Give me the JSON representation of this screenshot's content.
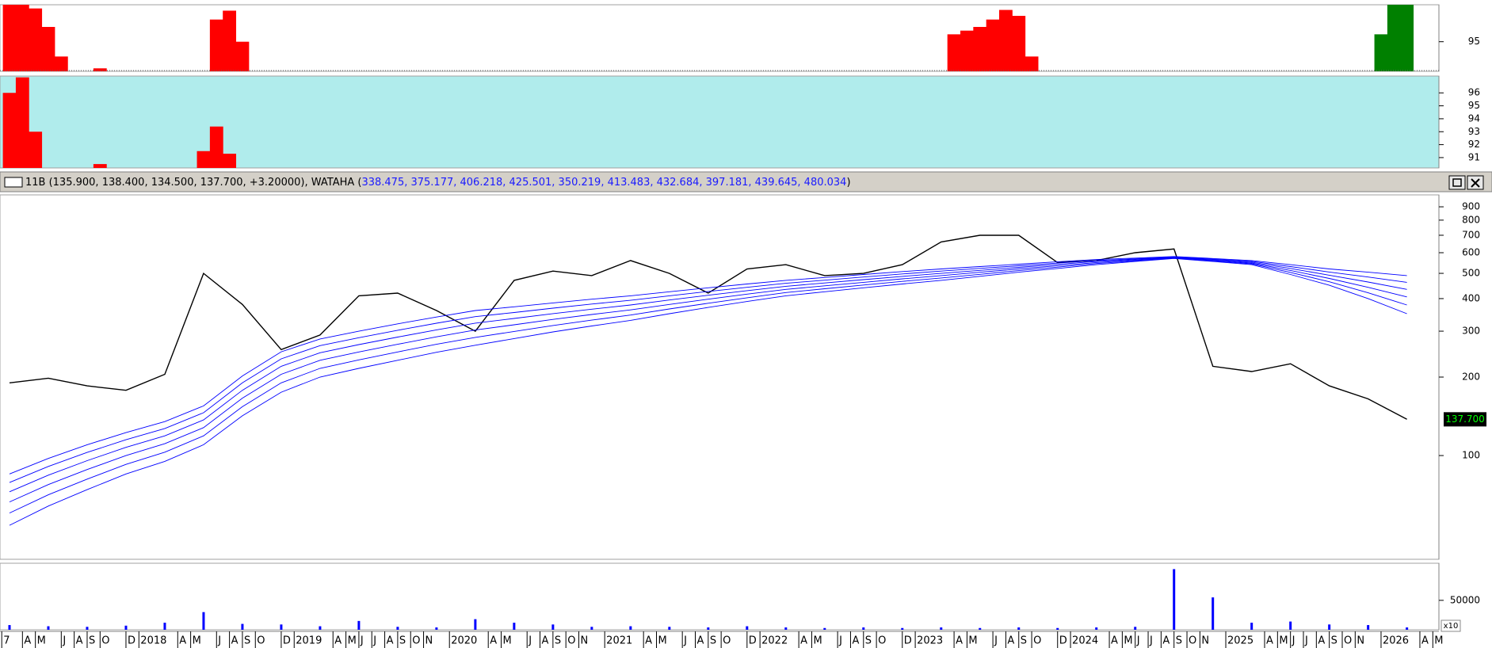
{
  "chart_data": [
    {
      "type": "bar",
      "series": [
        {
          "color": "#ff0000",
          "values": [
            100,
            100,
            99.5,
            97,
            93,
            null,
            null,
            91.4,
            null,
            null,
            null,
            null,
            null,
            null,
            null,
            null,
            98,
            99.2,
            95,
            null,
            null,
            null,
            null,
            null,
            null,
            null,
            null,
            null,
            null,
            null,
            null,
            null,
            null,
            null,
            null,
            null,
            null,
            null,
            null,
            null,
            null,
            null,
            null,
            null,
            null,
            null,
            null,
            null,
            null,
            null,
            null,
            null,
            null,
            null,
            null,
            null,
            null,
            null,
            null,
            null,
            null,
            null,
            null,
            null,
            null,
            null,
            null,
            null,
            null,
            null,
            null,
            null,
            null,
            96,
            96.5,
            97,
            98,
            99.3,
            98.5,
            93,
            null,
            null,
            null,
            null,
            null,
            null,
            null,
            null,
            null,
            null,
            null,
            null,
            null,
            null,
            null,
            null,
            null,
            null,
            null,
            null,
            null,
            null,
            null,
            null,
            null,
            null,
            null,
            null,
            null
          ]
        },
        {
          "color": "#008000",
          "values": [
            null,
            null,
            null,
            null,
            null,
            null,
            null,
            null,
            null,
            null,
            null,
            null,
            null,
            null,
            null,
            null,
            null,
            null,
            null,
            null,
            null,
            null,
            null,
            null,
            null,
            null,
            null,
            null,
            null,
            null,
            null,
            null,
            null,
            null,
            null,
            null,
            null,
            null,
            null,
            null,
            null,
            null,
            null,
            null,
            null,
            null,
            null,
            null,
            null,
            null,
            null,
            null,
            null,
            null,
            null,
            null,
            null,
            null,
            null,
            null,
            null,
            null,
            null,
            null,
            null,
            null,
            null,
            null,
            null,
            null,
            null,
            null,
            null,
            null,
            null,
            null,
            null,
            null,
            null,
            null,
            null,
            null,
            null,
            null,
            null,
            null,
            null,
            null,
            null,
            null,
            null,
            null,
            null,
            null,
            null,
            null,
            null,
            null,
            null,
            null,
            null,
            null,
            null,
            null,
            null,
            null,
            96,
            100,
            100
          ]
        }
      ],
      "ylim": [
        91,
        100
      ],
      "yticks": [
        95
      ],
      "background": "#ffffff"
    },
    {
      "type": "bar",
      "series": [
        {
          "color": "#ff0000",
          "values": [
            96,
            97.2,
            93,
            null,
            null,
            null,
            null,
            90.5,
            null,
            null,
            null,
            null,
            null,
            null,
            null,
            91.5,
            93.4,
            91.3,
            null,
            null,
            null,
            null,
            null,
            null,
            null,
            null,
            null,
            null,
            null,
            null,
            null,
            null,
            null,
            null,
            null,
            null,
            null,
            null,
            null,
            null,
            null,
            null,
            null,
            null,
            null,
            null,
            null,
            null,
            null,
            null,
            null,
            null,
            null,
            null,
            null,
            null,
            null,
            null,
            null,
            null,
            null,
            null,
            null,
            null,
            null,
            null,
            null,
            null,
            null,
            null,
            null,
            null,
            null,
            null,
            null,
            null,
            null,
            null,
            null,
            null,
            null,
            null,
            null,
            null,
            null,
            null,
            null,
            null,
            null,
            null,
            null,
            null,
            null,
            null,
            null,
            null,
            null,
            null,
            null,
            null,
            null,
            null,
            null,
            null,
            null,
            null,
            null,
            null,
            null
          ]
        }
      ],
      "ylim": [
        90.2,
        97.3
      ],
      "yticks": [
        91,
        92,
        93,
        94,
        95,
        96
      ],
      "background": "#b0ecec"
    },
    {
      "type": "line",
      "header": {
        "text": "11B (135.900, 138.400, 134.500, 137.700, +3.20000), WATAHA (",
        "ma_text": "338.475, 375.177, 406.218, 425.501, 350.219, 413.483, 432.684, 397.181, 439.645, 480.034",
        "end": ")"
      },
      "log_scale": true,
      "ylim": [
        40,
        1000
      ],
      "yticks": [
        100,
        200,
        300,
        400,
        500,
        600,
        700,
        800,
        900
      ],
      "last_value_label": "137.700",
      "series": [
        {
          "color": "#000000",
          "values": [
            190,
            198,
            185,
            178,
            205,
            500,
            380,
            255,
            290,
            410,
            420,
            360,
            300,
            470,
            510,
            490,
            560,
            500,
            420,
            520,
            540,
            490,
            500,
            540,
            660,
            700,
            700,
            550,
            560,
            600,
            620,
            220,
            210,
            225,
            185,
            165,
            137.7
          ]
        },
        {
          "color": "#0000ff",
          "values": [
            85,
            97.5,
            110,
            122.5,
            135,
            155,
            202,
            250,
            280,
            300,
            320,
            340,
            360,
            372,
            385,
            398,
            410,
            425,
            440,
            455,
            470,
            482,
            495,
            508,
            520,
            531,
            542,
            554,
            565,
            572,
            580,
            570,
            560,
            540,
            520,
            505,
            490
          ]
        },
        {
          "color": "#0000ff",
          "values": [
            78.8,
            90.8,
            102.8,
            115,
            127,
            146,
            190,
            235,
            264,
            283.2,
            302.4,
            321.8,
            341,
            353.8,
            367.6,
            381.2,
            394,
            410,
            426,
            442,
            458,
            470.6,
            484,
            497.4,
            510,
            522.2,
            534.6,
            547.6,
            560,
            568.6,
            578,
            567,
            556,
            531,
            506,
            484,
            462
          ]
        },
        {
          "color": "#0000ff",
          "values": [
            72.6,
            84.1,
            95.6,
            107.5,
            119,
            137,
            178,
            220,
            248,
            266.4,
            284.8,
            303.6,
            322,
            335.6,
            350.2,
            364.4,
            378,
            395,
            412,
            429,
            446,
            459.2,
            473,
            486.8,
            500,
            513.4,
            527.2,
            541.2,
            555,
            565.2,
            576,
            564,
            552,
            522,
            492,
            463,
            434
          ]
        },
        {
          "color": "#0000ff",
          "values": [
            66.4,
            77.4,
            88.4,
            100,
            111,
            128,
            166,
            205,
            232,
            249.6,
            267.2,
            285.4,
            303,
            317.4,
            332.8,
            347.6,
            362,
            380,
            398,
            416,
            434,
            447.8,
            462,
            476.2,
            490,
            504.6,
            519.8,
            534.8,
            550,
            561.8,
            574,
            561,
            548,
            513,
            478,
            442,
            406
          ]
        },
        {
          "color": "#0000ff",
          "values": [
            60.2,
            70.7,
            81.2,
            92.5,
            103,
            119,
            154,
            190,
            216,
            232.8,
            249.6,
            267.2,
            284,
            299.2,
            315.4,
            330.8,
            346,
            365,
            384,
            403,
            422,
            436.4,
            451,
            465.6,
            480,
            495.8,
            512.4,
            528.4,
            545,
            558.4,
            572,
            558,
            544,
            504,
            464,
            421,
            378
          ]
        },
        {
          "color": "#0000ff",
          "values": [
            54,
            64,
            74,
            85,
            95,
            110,
            142,
            175,
            200,
            216,
            232,
            249,
            265,
            281,
            298,
            314,
            330,
            350,
            370,
            390,
            410,
            425,
            440,
            455,
            470,
            487,
            505,
            522,
            540,
            555,
            570,
            555,
            540,
            495,
            450,
            400,
            350
          ]
        }
      ]
    },
    {
      "type": "bar",
      "series": [
        {
          "color": "#0000ff",
          "values": [
            8000,
            6000,
            5000,
            7000,
            12000,
            30000,
            10000,
            9000,
            6000,
            15000,
            5000,
            4000,
            18000,
            12000,
            9000,
            5000,
            6000,
            5000,
            4000,
            6000,
            4000,
            3000,
            4000,
            3000,
            4000,
            3000,
            4000,
            3000,
            4000,
            5000,
            103000,
            55000,
            12000,
            14000,
            9000,
            8000,
            4000
          ]
        }
      ],
      "ylim": [
        0,
        113000
      ],
      "yticks": [
        50000
      ],
      "y_unit_label": "x10",
      "background": "#ffffff",
      "x_labels": [
        "7",
        "A",
        "M",
        "J",
        "A",
        "S",
        "O",
        "D",
        "2018",
        "A",
        "M",
        "J",
        "A",
        "S",
        "O",
        "D",
        "2019",
        "A",
        "M",
        "J",
        "J",
        "A",
        "S",
        "O",
        "N",
        "2020",
        "A",
        "M",
        "J",
        "A",
        "S",
        "O",
        "N",
        "2021",
        "A",
        "M",
        "J",
        "A",
        "S",
        "O",
        "D",
        "2022",
        "A",
        "M",
        "J",
        "A",
        "S",
        "O",
        "D",
        "2023",
        "A",
        "M",
        "J",
        "A",
        "S",
        "O",
        "D",
        "2024",
        "A",
        "M",
        "J",
        "J",
        "A",
        "S",
        "O",
        "N",
        "2025",
        "A",
        "M",
        "J",
        "J",
        "A",
        "S",
        "O",
        "N",
        "2026",
        "A",
        "M"
      ]
    }
  ]
}
